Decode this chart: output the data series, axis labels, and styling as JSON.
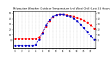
{
  "title": "Milwaukee Weather Outdoor Temperature (vs) Wind Chill (Last 24 Hours)",
  "title_fontsize": 2.8,
  "background_color": "#ffffff",
  "grid_color": "#999999",
  "ylim": [
    -15,
    55
  ],
  "y_ticks": [
    0,
    10,
    20,
    30,
    40,
    50
  ],
  "y_tick_labels": [
    "0",
    "10",
    "20",
    "30",
    "40",
    "50"
  ],
  "temp": [
    3,
    3,
    3,
    3,
    3,
    3,
    3,
    6,
    14,
    26,
    36,
    43,
    47,
    48,
    48,
    47,
    46,
    44,
    42,
    40,
    37,
    33,
    28,
    22
  ],
  "wind_chill": [
    -10,
    -10,
    -10,
    -10,
    -10,
    -10,
    -8,
    2,
    13,
    28,
    38,
    44,
    47,
    48,
    48,
    46,
    44,
    41,
    36,
    30,
    23,
    15,
    8,
    2
  ],
  "temp_color": "#ff0000",
  "wind_chill_color": "#0000cc",
  "line_width": 0.7,
  "dot_size": 1.5
}
